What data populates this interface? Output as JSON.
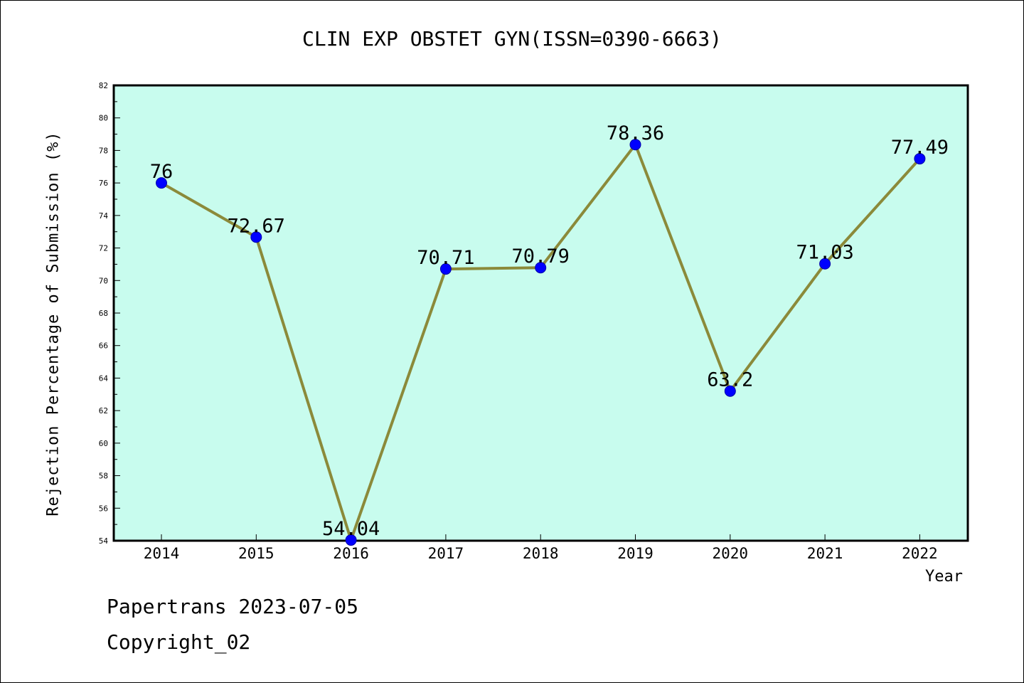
{
  "chart_data": {
    "type": "line",
    "title": "CLIN EXP OBSTET GYN(ISSN=0390-6663)",
    "xlabel": "Year",
    "ylabel": "Rejection Percentage of Submission (%)",
    "categories": [
      "2014",
      "2015",
      "2016",
      "2017",
      "2018",
      "2019",
      "2020",
      "2021",
      "2022"
    ],
    "series": [
      {
        "values": [
          76,
          72.67,
          54.04,
          70.71,
          70.79,
          78.36,
          63.2,
          71.03,
          77.49
        ],
        "data_labels": [
          "76",
          "72.67",
          "54.04",
          "70.71",
          "70.79",
          "78.36",
          "63.2",
          "71.03",
          "77.49"
        ]
      }
    ],
    "ylim": [
      54,
      82
    ],
    "yticks": [
      "54",
      "56",
      "58",
      "60",
      "62",
      "64",
      "66",
      "68",
      "70",
      "72",
      "74",
      "76",
      "78",
      "80",
      "82"
    ],
    "grid": false,
    "colors": {
      "plot_background": "#c8fcee",
      "line": "#8b8a3a",
      "marker": "#0000ff"
    }
  },
  "footer": {
    "date": "Papertrans 2023-07-05",
    "copyright": "Copyright_02"
  }
}
